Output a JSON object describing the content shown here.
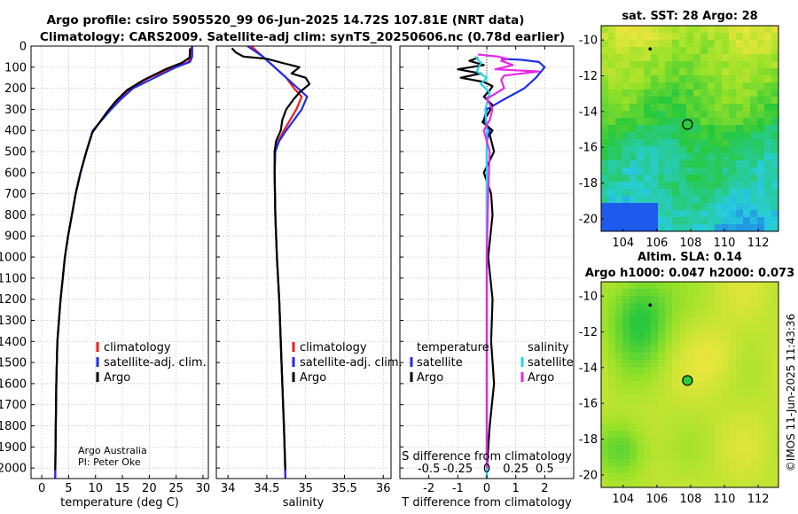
{
  "header": {
    "line1": "Argo profile: csiro 5905520_99 06-Jun-2025 14.72S 107.81E (NRT data)",
    "line2": "Climatology: CARS2009. Satellite-adj clim: synTS_20250606.nc (0.78d earlier)"
  },
  "credit": {
    "line1": "Argo Australia",
    "line2": "PI: Peter Oke"
  },
  "stamp": "©IMOS 11-Jun-2025 11:43:36",
  "colors": {
    "climatology": "#ee1c1c",
    "satellite": "#1d2ee8",
    "argo": "#000000",
    "sat_salinity": "#22d6e6",
    "argo_salinity": "#e629e6"
  },
  "chart_data": [
    {
      "type": "line",
      "id": "temperature",
      "xlabel": "temperature (deg C)",
      "xlim": [
        -2,
        31
      ],
      "ylim": [
        2050,
        0
      ],
      "xticks": [
        0,
        5,
        10,
        15,
        20,
        25,
        30
      ],
      "xtick_labels": [
        "0",
        "5",
        "10",
        "15",
        "20",
        "25",
        "30"
      ],
      "yticks": [
        0,
        100,
        200,
        300,
        400,
        500,
        600,
        700,
        800,
        900,
        1000,
        1100,
        1200,
        1300,
        1400,
        1500,
        1600,
        1700,
        1800,
        1900,
        2000
      ],
      "ytick_labels": [
        "0",
        "100",
        "200",
        "300",
        "400",
        "500",
        "600",
        "700",
        "800",
        "900",
        "1000",
        "1100",
        "1200",
        "1300",
        "1400",
        "1500",
        "1600",
        "1700",
        "1800",
        "1900",
        "2000"
      ],
      "legend": [
        "climatology",
        "satellite-adj. clim.",
        "Argo"
      ],
      "series": [
        {
          "name": "climatology",
          "color": "#ee1c1c",
          "x": [
            27.9,
            27.8,
            27.2,
            24.5,
            20.0,
            16.5,
            14.5,
            12.8,
            11.2,
            9.5,
            8.3,
            7.2,
            6.3,
            5.6,
            4.9,
            4.3,
            3.9,
            3.5,
            3.2,
            2.9,
            2.7,
            2.6,
            2.5
          ],
          "y": [
            0,
            50,
            75,
            100,
            150,
            200,
            250,
            300,
            350,
            400,
            500,
            600,
            700,
            800,
            900,
            1000,
            1100,
            1200,
            1300,
            1400,
            1600,
            1800,
            2050
          ]
        },
        {
          "name": "satellite-adj. clim.",
          "color": "#1d2ee8",
          "x": [
            28.0,
            28.0,
            27.6,
            25.0,
            21.0,
            17.0,
            14.8,
            12.9,
            11.2,
            9.5,
            8.3,
            7.2,
            6.3,
            5.6,
            4.9,
            4.3,
            3.9,
            3.5,
            3.2,
            2.9,
            2.7,
            2.6,
            2.5
          ],
          "y": [
            0,
            50,
            75,
            100,
            150,
            200,
            250,
            300,
            350,
            400,
            500,
            600,
            700,
            800,
            900,
            1000,
            1100,
            1200,
            1300,
            1400,
            1600,
            1800,
            2050
          ]
        },
        {
          "name": "Argo",
          "color": "#000000",
          "x": [
            27.6,
            27.5,
            26.0,
            23.0,
            19.0,
            15.8,
            13.8,
            12.2,
            10.8,
            9.4,
            8.3,
            7.2,
            6.3,
            5.6,
            4.9,
            4.3,
            3.9,
            3.5,
            3.2,
            2.9,
            2.7,
            2.6,
            2.5
          ],
          "y": [
            10,
            55,
            80,
            110,
            160,
            210,
            260,
            310,
            360,
            410,
            500,
            600,
            700,
            800,
            900,
            1000,
            1100,
            1200,
            1300,
            1400,
            1600,
            1800,
            2010
          ]
        }
      ]
    },
    {
      "type": "line",
      "id": "salinity",
      "xlabel": "salinity",
      "xlim": [
        33.85,
        36.1
      ],
      "ylim": [
        2050,
        0
      ],
      "xticks": [
        34,
        34.5,
        35,
        35.5,
        36
      ],
      "xtick_labels": [
        "34",
        "34.5",
        "35",
        "35.5",
        "36"
      ],
      "legend": [
        "climatology",
        "satellite-adj. clim.",
        "Argo"
      ],
      "series": [
        {
          "name": "climatology",
          "color": "#ee1c1c",
          "x": [
            34.3,
            34.45,
            34.6,
            34.75,
            34.85,
            34.95,
            34.88,
            34.8,
            34.72,
            34.65,
            34.61,
            34.6,
            34.61,
            34.63,
            34.66,
            34.69,
            34.72,
            34.74
          ],
          "y": [
            0,
            50,
            100,
            150,
            200,
            240,
            300,
            350,
            400,
            450,
            500,
            600,
            800,
            1000,
            1200,
            1500,
            1800,
            2050
          ]
        },
        {
          "name": "satellite-adj. clim.",
          "color": "#1d2ee8",
          "x": [
            34.25,
            34.45,
            34.6,
            34.75,
            34.9,
            35.02,
            34.95,
            34.85,
            34.75,
            34.66,
            34.61,
            34.6,
            34.61,
            34.63,
            34.66,
            34.69,
            34.72,
            34.74
          ],
          "y": [
            0,
            50,
            100,
            150,
            200,
            240,
            300,
            350,
            400,
            450,
            500,
            600,
            800,
            1000,
            1200,
            1500,
            1800,
            2050
          ]
        },
        {
          "name": "Argo",
          "color": "#000000",
          "x": [
            34.05,
            34.1,
            34.2,
            34.5,
            34.7,
            34.92,
            34.82,
            35.0,
            35.05,
            34.92,
            34.85,
            34.75,
            34.7,
            34.68,
            34.62,
            34.6,
            34.6,
            34.61,
            34.63,
            34.66,
            34.69,
            34.72,
            34.74
          ],
          "y": [
            10,
            30,
            50,
            60,
            80,
            100,
            130,
            150,
            180,
            220,
            250,
            300,
            350,
            400,
            450,
            500,
            600,
            800,
            1000,
            1200,
            1500,
            1800,
            2010
          ]
        }
      ]
    },
    {
      "type": "line",
      "id": "differences",
      "xlabel": "T difference from climatology",
      "xlabel_top": "S difference from climatology",
      "xlim": [
        -3,
        3
      ],
      "ylim": [
        2050,
        0
      ],
      "xticks": [
        -2,
        -1,
        0,
        1,
        2
      ],
      "xtick_labels": [
        "-2",
        "-1",
        "0",
        "1",
        "2"
      ],
      "top_xtick_labels": [
        "-0.5",
        "-0.25",
        "0",
        "0.25",
        "0.5"
      ],
      "legend_left_title": "temperature",
      "legend_right_title": "salinity",
      "legend_left": [
        "satellite",
        "Argo"
      ],
      "legend_right": [
        "satellite",
        "Argo"
      ],
      "series": [
        {
          "name": "T satellite",
          "color": "#1d2ee8",
          "x": [
            0.5,
            1.2,
            1.8,
            2.0,
            1.7,
            1.3,
            0.5,
            0.0,
            -0.1,
            0.1,
            0.0,
            0.0,
            0.0,
            0.0,
            0.0,
            0.0
          ],
          "y": [
            60,
            65,
            75,
            100,
            150,
            200,
            260,
            300,
            350,
            400,
            450,
            500,
            700,
            1000,
            1500,
            2050
          ]
        },
        {
          "name": "T Argo",
          "color": "#000000",
          "x": [
            -0.3,
            -0.6,
            -0.1,
            -1.0,
            -0.2,
            -0.9,
            -0.1,
            0.2,
            0.1,
            -0.1,
            0.2,
            0.05,
            -0.15,
            0.2,
            0.1,
            0.25,
            -0.1,
            0.15,
            0.2,
            0.05,
            0.2,
            0.15,
            0.25,
            0.1,
            0.0
          ],
          "y": [
            55,
            70,
            90,
            110,
            130,
            150,
            170,
            190,
            210,
            240,
            280,
            320,
            360,
            400,
            420,
            500,
            600,
            700,
            800,
            1000,
            1200,
            1400,
            1600,
            1800,
            2010
          ]
        },
        {
          "name": "S satellite",
          "color": "#22d6e6",
          "x": [
            -0.4,
            -0.2,
            -0.35,
            0.0,
            -0.2,
            0.1,
            -0.05,
            0.0,
            0.0,
            0.0,
            0.0,
            0.0
          ],
          "y": [
            50,
            80,
            120,
            150,
            180,
            220,
            300,
            400,
            500,
            700,
            1200,
            2050
          ]
        },
        {
          "name": "S Argo",
          "color": "#e629e6",
          "x": [
            -0.3,
            0.4,
            0.7,
            0.5,
            0.9,
            0.3,
            1.8,
            0.6,
            0.5,
            0.6,
            0.0,
            0.2,
            0.1,
            -0.1,
            0.0,
            0.1,
            0.05,
            0.0,
            0.0
          ],
          "y": [
            40,
            50,
            60,
            70,
            90,
            110,
            120,
            140,
            160,
            200,
            250,
            300,
            350,
            400,
            450,
            500,
            700,
            1000,
            2000
          ]
        }
      ]
    },
    {
      "type": "heatmap",
      "id": "sst-map",
      "title": "sat. SST: 28 Argo: 28",
      "xlim": [
        102.7,
        113.2
      ],
      "ylim": [
        -20.7,
        -9.2
      ],
      "xticks": [
        104,
        106,
        108,
        110,
        112
      ],
      "yticks": [
        -10,
        -12,
        -14,
        -16,
        -18,
        -20
      ],
      "xtick_labels": [
        "104",
        "106",
        "108",
        "110",
        "112"
      ],
      "ytick_labels": [
        "-10",
        "-12",
        "-14",
        "-16",
        "-18",
        "-20"
      ],
      "float_position": {
        "lon": 107.81,
        "lat": -14.72
      },
      "prev_position": {
        "lon": 105.6,
        "lat": -10.5
      }
    },
    {
      "type": "heatmap",
      "id": "sla-map",
      "title1": "Altim. SLA: 0.14",
      "title2": "Argo h1000: 0.047 h2000: 0.073",
      "xlim": [
        102.7,
        113.2
      ],
      "ylim": [
        -20.7,
        -9.2
      ],
      "xticks": [
        104,
        106,
        108,
        110,
        112
      ],
      "yticks": [
        -10,
        -12,
        -14,
        -16,
        -18,
        -20
      ],
      "xtick_labels": [
        "104",
        "106",
        "108",
        "110",
        "112"
      ],
      "ytick_labels": [
        "-10",
        "-12",
        "-14",
        "-16",
        "-18",
        "-20"
      ],
      "float_position": {
        "lon": 107.81,
        "lat": -14.72
      },
      "prev_position": {
        "lon": 105.6,
        "lat": -10.5
      }
    }
  ]
}
